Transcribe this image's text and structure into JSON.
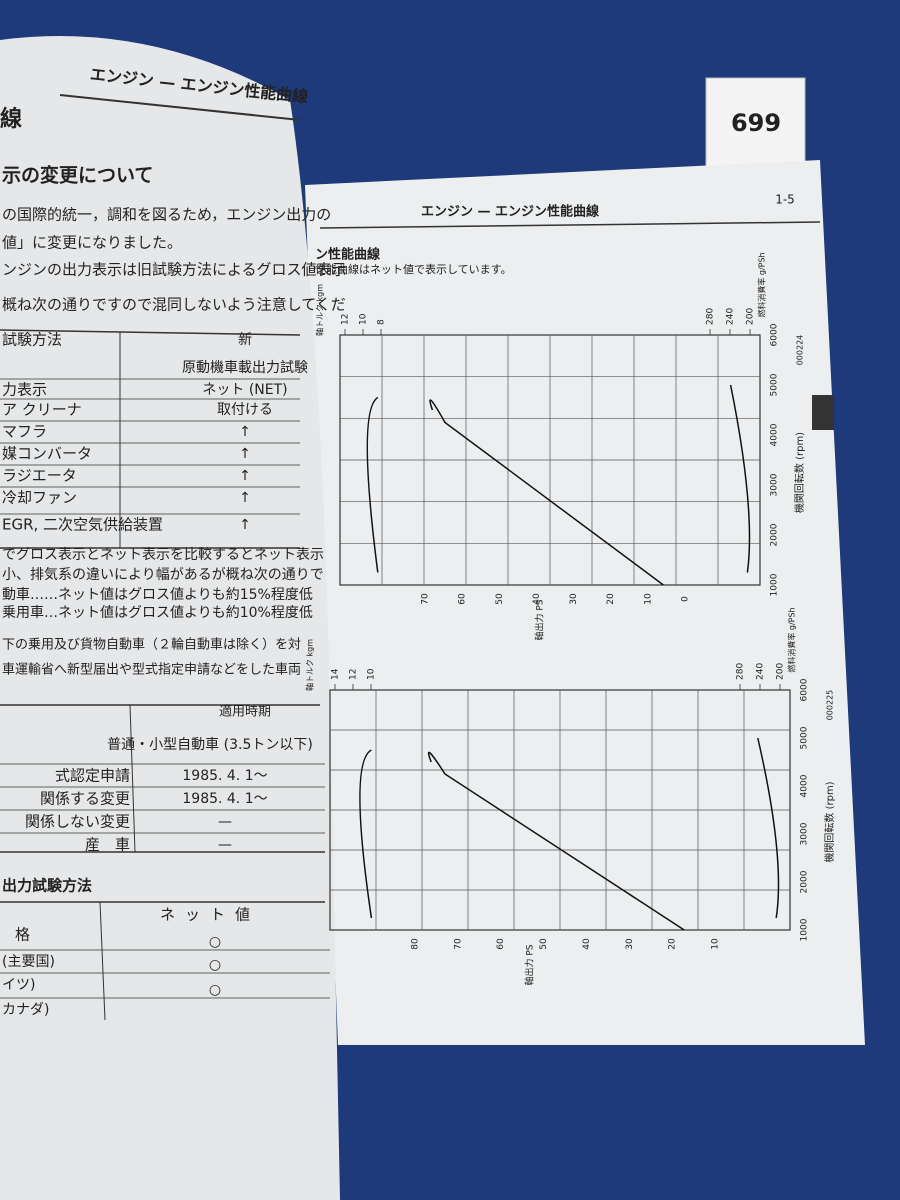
{
  "tag": "699",
  "left_page": {
    "header": "エンジン — エンジン性能曲線",
    "section_title": "線",
    "subtitle": "示の変更について",
    "paragraphs": [
      "の国際的統一，調和を図るため，エンジン出力の",
      "値」に変更になりました。",
      "ンジンの出力表示は旧試験方法によるグロス値表示",
      "概ね次の通りですので混同しないよう注意してくだ"
    ],
    "table1": {
      "rows": [
        [
          "試験方法",
          "新"
        ],
        [
          "",
          "原動機車載出力試験"
        ],
        [
          "力表示",
          "ネット (NET)"
        ],
        [
          "ア クリーナ",
          "取付ける"
        ],
        [
          "マフラ",
          "↑"
        ],
        [
          "媒コンバータ",
          "↑"
        ],
        [
          "ラジエータ",
          "↑"
        ],
        [
          "冷却ファン",
          "↑"
        ],
        [
          "EGR, 二次空気供給装置",
          "↑"
        ]
      ]
    },
    "notes": [
      "でグロス表示とネット表示を比較するとネット表示",
      "小、排気系の違いにより幅があるが概ね次の通りで",
      "動車……ネット値はグロス値よりも約15%程度低",
      "乗用車…ネット値はグロス値よりも約10%程度低"
    ],
    "paragraphs2": [
      "下の乗用及び貨物自動車（２輪自動車は除く）を対",
      "車運輸省へ新型届出や型式指定申請などをした車両"
    ],
    "table2": {
      "header": "適用時期",
      "subheader": "普通・小型自動車 (3.5トン以下)",
      "rows": [
        [
          "式認定申請",
          "1985. 4. 1〜"
        ],
        [
          "関係する変更",
          "1985. 4. 1〜"
        ],
        [
          "関係しない変更",
          "—"
        ],
        [
          "産　車",
          "—"
        ]
      ]
    },
    "section2": "出力試験方法",
    "table3": {
      "header": [
        "格",
        "ネット値"
      ],
      "rows": [
        [
          "(主要国)",
          "○"
        ],
        [
          "イツ)",
          "○"
        ],
        [
          "カナダ)",
          "○"
        ]
      ]
    }
  },
  "right_page": {
    "page_number": "1-5",
    "header": "エンジン — エンジン性能曲線",
    "section_title": "ン性能曲線",
    "caption": "性能曲線はネット値で表示しています。",
    "charts": [
      {
        "code": "000224",
        "torque_label": "軸トルク kgm",
        "torque_ticks": [
          "12",
          "10",
          "8"
        ],
        "fuel_label": "燃料消費率 g/PSh",
        "fuel_ticks": [
          "280",
          "240",
          "200"
        ],
        "rpm_label": "機関回転数 (rpm)",
        "rpm_ticks": [
          "1000",
          "2000",
          "3000",
          "4000",
          "5000",
          "6000"
        ],
        "power_label": "軸出力 PS",
        "power_ticks": [
          "70",
          "60",
          "50",
          "40",
          "30",
          "20",
          "10",
          "0"
        ]
      },
      {
        "code": "000225",
        "torque_label": "軸トルク kgm",
        "torque_ticks": [
          "14",
          "12",
          "10"
        ],
        "fuel_label": "燃料消費率 g/PSh",
        "fuel_ticks": [
          "280",
          "240",
          "200"
        ],
        "rpm_label": "機関回転数 (rpm)",
        "rpm_ticks": [
          "1000",
          "2000",
          "3000",
          "4000",
          "5000",
          "6000"
        ],
        "power_label": "軸出力 PS",
        "power_ticks": [
          "80",
          "70",
          "60",
          "50",
          "40",
          "30",
          "20",
          "10"
        ]
      }
    ]
  }
}
